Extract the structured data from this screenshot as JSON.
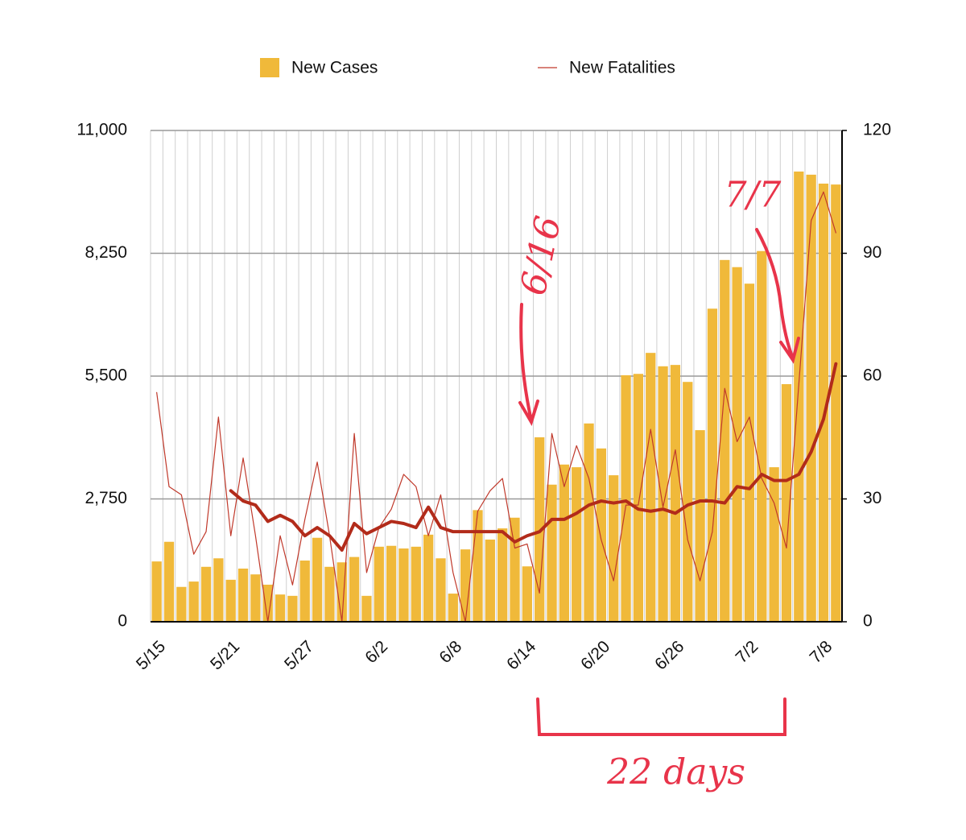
{
  "chart_data": {
    "type": "bar",
    "categories": [
      "5/15",
      null,
      null,
      null,
      null,
      null,
      "5/21",
      null,
      null,
      null,
      null,
      null,
      "5/27",
      null,
      null,
      null,
      null,
      null,
      "6/2",
      null,
      null,
      null,
      null,
      null,
      "6/8",
      null,
      null,
      null,
      null,
      null,
      "6/14",
      null,
      null,
      null,
      null,
      null,
      "6/20",
      null,
      null,
      null,
      null,
      null,
      "6/26",
      null,
      null,
      null,
      null,
      null,
      "7/2",
      null,
      null,
      null,
      null,
      null,
      "7/8",
      null
    ],
    "series": [
      {
        "name": "New Cases",
        "type": "bar",
        "color": "#f0b93a",
        "axis": "y",
        "values": [
          1350,
          1790,
          780,
          900,
          1230,
          1420,
          940,
          1190,
          1060,
          830,
          610,
          580,
          1370,
          1880,
          1230,
          1330,
          1450,
          580,
          1680,
          1700,
          1640,
          1680,
          1950,
          1420,
          630,
          1620,
          2500,
          1840,
          2090,
          2330,
          1240,
          4130,
          3070,
          3520,
          3460,
          4440,
          3880,
          3280,
          5520,
          5550,
          6020,
          5720,
          5750,
          5370,
          4290,
          7010,
          8100,
          7940,
          7570,
          8300,
          3460,
          5320,
          10080,
          10010,
          9810,
          9790
        ]
      },
      {
        "name": "New Fatalities",
        "type": "line",
        "color": "#c0392b",
        "axis": "y2",
        "line_width": 1.2,
        "values": [
          56,
          33,
          31,
          16.5,
          22,
          50,
          21,
          40,
          21,
          0,
          21,
          9,
          25,
          39,
          21,
          0,
          46,
          12,
          23,
          27.5,
          36,
          33,
          21,
          31,
          12,
          0,
          27,
          32,
          35,
          18,
          19,
          7,
          46,
          33,
          43,
          35,
          20,
          10,
          28.5,
          28.5,
          47,
          28,
          42,
          20,
          10,
          22,
          57,
          44,
          50,
          35,
          29,
          18,
          58,
          98,
          105,
          95
        ]
      },
      {
        "type": "line",
        "color": "#b22b1a",
        "axis": "y2",
        "line_width": 4,
        "values": [
          null,
          null,
          null,
          null,
          null,
          null,
          32,
          29.5,
          28.5,
          24.5,
          26,
          24.5,
          21,
          23,
          21,
          17.5,
          24,
          21.5,
          23,
          24.5,
          24,
          23,
          28,
          23,
          22,
          22,
          22,
          22,
          22,
          19.5,
          21,
          22,
          25,
          25,
          26.5,
          28.5,
          29.5,
          29,
          29.5,
          27.5,
          27,
          27.5,
          26.5,
          28.5,
          29.5,
          29.5,
          29,
          33,
          32.5,
          36,
          34.5,
          34.5,
          36,
          41.5,
          49.5,
          63
        ]
      }
    ],
    "ylim": [
      0,
      11000
    ],
    "yticks": [
      0,
      {
        "value": 2750,
        "label": "2,750"
      },
      {
        "value": 5500,
        "label": "5,500"
      },
      {
        "value": 8250,
        "label": "8,250"
      },
      {
        "value": 11000,
        "label": "11,000"
      }
    ],
    "y2lim": [
      0,
      120
    ],
    "y2ticks": [
      0,
      30,
      60,
      90,
      120
    ],
    "grid": true,
    "legend": "top",
    "annotations": [
      "6/16",
      "7/7",
      "22 days"
    ]
  }
}
